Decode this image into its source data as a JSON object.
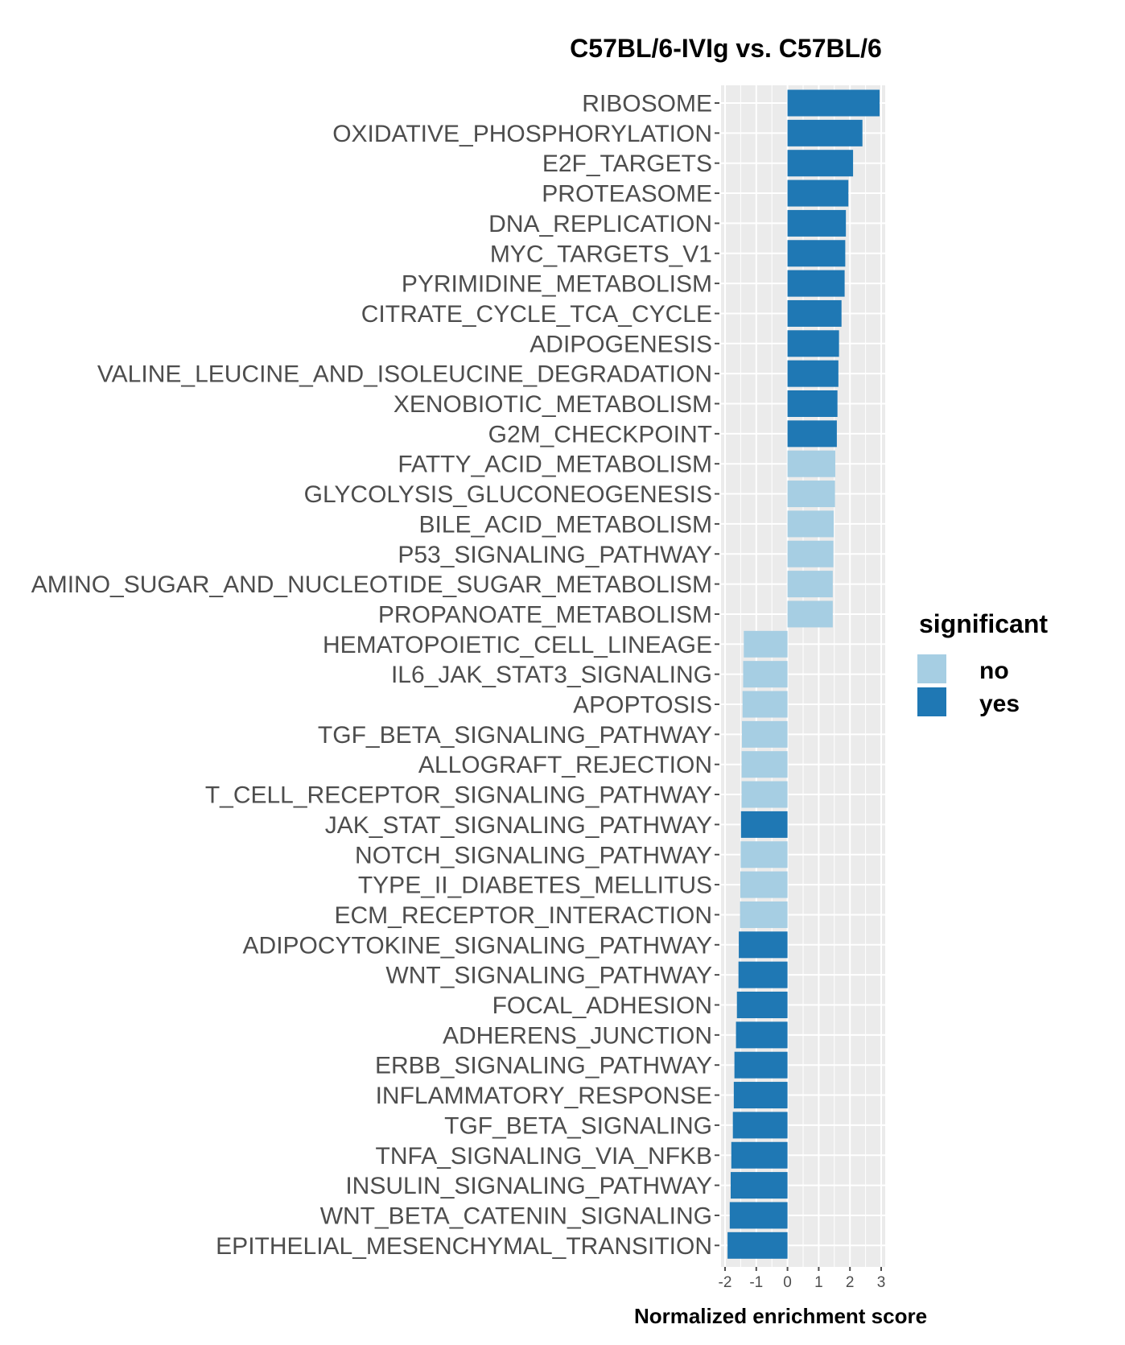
{
  "chart_data": {
    "type": "bar",
    "orientation": "horizontal",
    "title": "C57BL/6-IVIg vs. C57BL/6",
    "xlabel": "Normalized enrichment score",
    "ylabel": "",
    "xlim": [
      -2,
      3
    ],
    "xticks": [
      -2,
      -1,
      0,
      1,
      2,
      3
    ],
    "grid": true,
    "legend": {
      "title": "significant",
      "placement": "right",
      "entries": [
        {
          "label": "no",
          "color": "#a6cee3"
        },
        {
          "label": "yes",
          "color": "#1f78b4"
        }
      ]
    },
    "bars": [
      {
        "category": "RIBOSOME",
        "value": 2.95,
        "significant": "yes"
      },
      {
        "category": "OXIDATIVE_PHOSPHORYLATION",
        "value": 2.4,
        "significant": "yes"
      },
      {
        "category": "E2F_TARGETS",
        "value": 2.1,
        "significant": "yes"
      },
      {
        "category": "PROTEASOME",
        "value": 1.95,
        "significant": "yes"
      },
      {
        "category": "DNA_REPLICATION",
        "value": 1.87,
        "significant": "yes"
      },
      {
        "category": "MYC_TARGETS_V1",
        "value": 1.85,
        "significant": "yes"
      },
      {
        "category": "PYRIMIDINE_METABOLISM",
        "value": 1.83,
        "significant": "yes"
      },
      {
        "category": "CITRATE_CYCLE_TCA_CYCLE",
        "value": 1.73,
        "significant": "yes"
      },
      {
        "category": "ADIPOGENESIS",
        "value": 1.65,
        "significant": "yes"
      },
      {
        "category": "VALINE_LEUCINE_AND_ISOLEUCINE_DEGRADATION",
        "value": 1.63,
        "significant": "yes"
      },
      {
        "category": "XENOBIOTIC_METABOLISM",
        "value": 1.6,
        "significant": "yes"
      },
      {
        "category": "G2M_CHECKPOINT",
        "value": 1.58,
        "significant": "yes"
      },
      {
        "category": "FATTY_ACID_METABOLISM",
        "value": 1.53,
        "significant": "no"
      },
      {
        "category": "GLYCOLYSIS_GLUCONEOGENESIS",
        "value": 1.52,
        "significant": "no"
      },
      {
        "category": "BILE_ACID_METABOLISM",
        "value": 1.48,
        "significant": "no"
      },
      {
        "category": "P53_SIGNALING_PATHWAY",
        "value": 1.47,
        "significant": "no"
      },
      {
        "category": "AMINO_SUGAR_AND_NUCLEOTIDE_SUGAR_METABOLISM",
        "value": 1.45,
        "significant": "no"
      },
      {
        "category": "PROPANOATE_METABOLISM",
        "value": 1.45,
        "significant": "no"
      },
      {
        "category": "HEMATOPOIETIC_CELL_LINEAGE",
        "value": -1.4,
        "significant": "no"
      },
      {
        "category": "IL6_JAK_STAT3_SIGNALING",
        "value": -1.42,
        "significant": "no"
      },
      {
        "category": "APOPTOSIS",
        "value": -1.44,
        "significant": "no"
      },
      {
        "category": "TGF_BETA_SIGNALING_PATHWAY",
        "value": -1.46,
        "significant": "no"
      },
      {
        "category": "ALLOGRAFT_REJECTION",
        "value": -1.47,
        "significant": "no"
      },
      {
        "category": "T_CELL_RECEPTOR_SIGNALING_PATHWAY",
        "value": -1.47,
        "significant": "no"
      },
      {
        "category": "JAK_STAT_SIGNALING_PATHWAY",
        "value": -1.49,
        "significant": "yes"
      },
      {
        "category": "NOTCH_SIGNALING_PATHWAY",
        "value": -1.5,
        "significant": "no"
      },
      {
        "category": "TYPE_II_DIABETES_MELLITUS",
        "value": -1.51,
        "significant": "no"
      },
      {
        "category": "ECM_RECEPTOR_INTERACTION",
        "value": -1.52,
        "significant": "no"
      },
      {
        "category": "ADIPOCYTOKINE_SIGNALING_PATHWAY",
        "value": -1.56,
        "significant": "yes"
      },
      {
        "category": "WNT_SIGNALING_PATHWAY",
        "value": -1.57,
        "significant": "yes"
      },
      {
        "category": "FOCAL_ADHESION",
        "value": -1.62,
        "significant": "yes"
      },
      {
        "category": "ADHERENS_JUNCTION",
        "value": -1.65,
        "significant": "yes"
      },
      {
        "category": "ERBB_SIGNALING_PATHWAY",
        "value": -1.7,
        "significant": "yes"
      },
      {
        "category": "INFLAMMATORY_RESPONSE",
        "value": -1.72,
        "significant": "yes"
      },
      {
        "category": "TGF_BETA_SIGNALING",
        "value": -1.75,
        "significant": "yes"
      },
      {
        "category": "TNFA_SIGNALING_VIA_NFKB",
        "value": -1.8,
        "significant": "yes"
      },
      {
        "category": "INSULIN_SIGNALING_PATHWAY",
        "value": -1.82,
        "significant": "yes"
      },
      {
        "category": "WNT_BETA_CATENIN_SIGNALING",
        "value": -1.85,
        "significant": "yes"
      },
      {
        "category": "EPITHELIAL_MESENCHYMAL_TRANSITION",
        "value": -1.92,
        "significant": "yes"
      }
    ]
  }
}
